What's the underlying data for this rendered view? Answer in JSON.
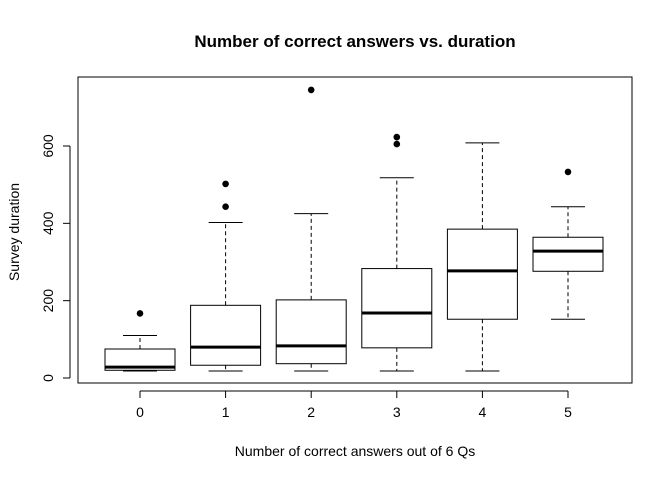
{
  "chart_data": {
    "type": "boxplot",
    "title": "Number of correct answers vs. duration",
    "xlabel": "Number of correct answers out of 6 Qs",
    "ylabel": "Survey duration",
    "categories": [
      "0",
      "1",
      "2",
      "3",
      "4",
      "5"
    ],
    "yticks": [
      "0",
      "200",
      "400",
      "600"
    ],
    "ylim": [
      0,
      760
    ],
    "grid": false,
    "legend": "none",
    "boxes": [
      {
        "category": "0",
        "whisker_low": 18,
        "q1": 20,
        "median": 28,
        "q3": 75,
        "whisker_high": 110,
        "outliers": [
          167
        ]
      },
      {
        "category": "1",
        "whisker_low": 18,
        "q1": 33,
        "median": 80,
        "q3": 188,
        "whisker_high": 402,
        "outliers": [
          443,
          502
        ]
      },
      {
        "category": "2",
        "whisker_low": 18,
        "q1": 37,
        "median": 83,
        "q3": 202,
        "whisker_high": 425,
        "outliers": [
          745
        ]
      },
      {
        "category": "3",
        "whisker_low": 18,
        "q1": 78,
        "median": 168,
        "q3": 283,
        "whisker_high": 518,
        "outliers": [
          605,
          623
        ]
      },
      {
        "category": "4",
        "whisker_low": 18,
        "q1": 152,
        "median": 277,
        "q3": 385,
        "whisker_high": 608,
        "outliers": []
      },
      {
        "category": "5",
        "whisker_low": 152,
        "q1": 276,
        "median": 328,
        "q3": 364,
        "whisker_high": 443,
        "outliers": [
          533
        ]
      }
    ]
  }
}
